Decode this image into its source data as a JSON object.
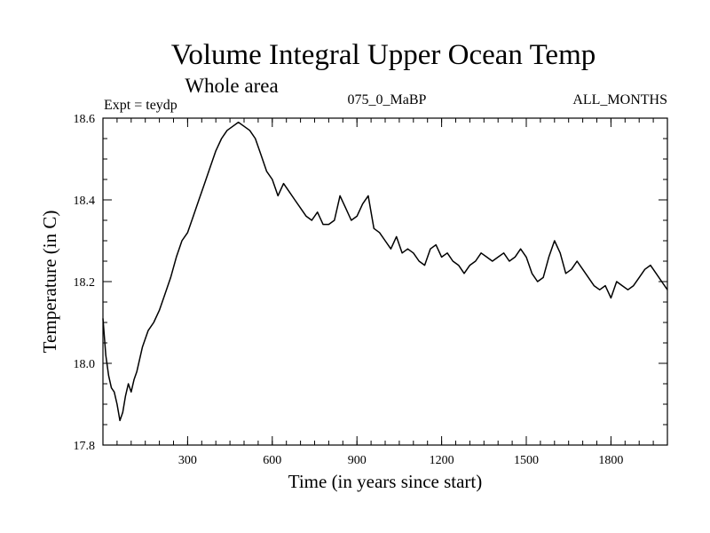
{
  "chart_data": {
    "type": "line",
    "title": "Volume Integral Upper Ocean Temp",
    "subtitle": "Whole area",
    "experiment_label": "Expt = teydp",
    "run_label": "075_0_MaBP",
    "months_label": "ALL_MONTHS",
    "xlabel": "Time (in years since start)",
    "ylabel": "Temperature (in C)",
    "xlim": [
      0,
      2000
    ],
    "ylim": [
      17.8,
      18.6
    ],
    "x_ticks": [
      300,
      600,
      900,
      1200,
      1500,
      1800
    ],
    "x_tick_labels": [
      "300",
      "600",
      "900",
      "1200",
      "1500",
      "1800"
    ],
    "y_ticks": [
      17.8,
      18.0,
      18.2,
      18.4,
      18.6
    ],
    "y_tick_labels": [
      "17.8",
      "18.0",
      "18.2",
      "18.4",
      "18.6"
    ],
    "x_minor_step": 50,
    "y_minor_step": 0.05,
    "grid": false,
    "series": [
      {
        "name": "Volume integral upper ocean temperature",
        "x": [
          0,
          10,
          20,
          30,
          40,
          50,
          60,
          70,
          80,
          90,
          100,
          110,
          120,
          140,
          160,
          180,
          200,
          220,
          240,
          260,
          280,
          300,
          320,
          340,
          360,
          380,
          400,
          420,
          440,
          460,
          480,
          500,
          520,
          540,
          560,
          580,
          600,
          620,
          640,
          660,
          680,
          700,
          720,
          740,
          760,
          780,
          800,
          820,
          840,
          860,
          880,
          900,
          920,
          940,
          960,
          980,
          1000,
          1020,
          1040,
          1060,
          1080,
          1100,
          1120,
          1140,
          1160,
          1180,
          1200,
          1220,
          1240,
          1260,
          1280,
          1300,
          1320,
          1340,
          1360,
          1380,
          1400,
          1420,
          1440,
          1460,
          1480,
          1500,
          1520,
          1540,
          1560,
          1580,
          1600,
          1620,
          1640,
          1660,
          1680,
          1700,
          1720,
          1740,
          1760,
          1780,
          1800,
          1820,
          1840,
          1860,
          1880,
          1900,
          1920,
          1940,
          1960,
          1980,
          2000
        ],
        "values": [
          18.11,
          18.02,
          17.97,
          17.94,
          17.93,
          17.9,
          17.86,
          17.88,
          17.92,
          17.95,
          17.93,
          17.96,
          17.98,
          18.04,
          18.08,
          18.1,
          18.13,
          18.17,
          18.21,
          18.26,
          18.3,
          18.32,
          18.36,
          18.4,
          18.44,
          18.48,
          18.52,
          18.55,
          18.57,
          18.58,
          18.59,
          18.58,
          18.57,
          18.55,
          18.51,
          18.47,
          18.45,
          18.41,
          18.44,
          18.42,
          18.4,
          18.38,
          18.36,
          18.35,
          18.37,
          18.34,
          18.34,
          18.35,
          18.41,
          18.38,
          18.35,
          18.36,
          18.39,
          18.41,
          18.33,
          18.32,
          18.3,
          18.28,
          18.31,
          18.27,
          18.28,
          18.27,
          18.25,
          18.24,
          18.28,
          18.29,
          18.26,
          18.27,
          18.25,
          18.24,
          18.22,
          18.24,
          18.25,
          18.27,
          18.26,
          18.25,
          18.26,
          18.27,
          18.25,
          18.26,
          18.28,
          18.26,
          18.22,
          18.2,
          18.21,
          18.26,
          18.3,
          18.27,
          18.22,
          18.23,
          18.25,
          18.23,
          18.21,
          18.19,
          18.18,
          18.19,
          18.16,
          18.2,
          18.19,
          18.18,
          18.19,
          18.21,
          18.23,
          18.24,
          18.22,
          18.2,
          18.18
        ]
      }
    ]
  }
}
